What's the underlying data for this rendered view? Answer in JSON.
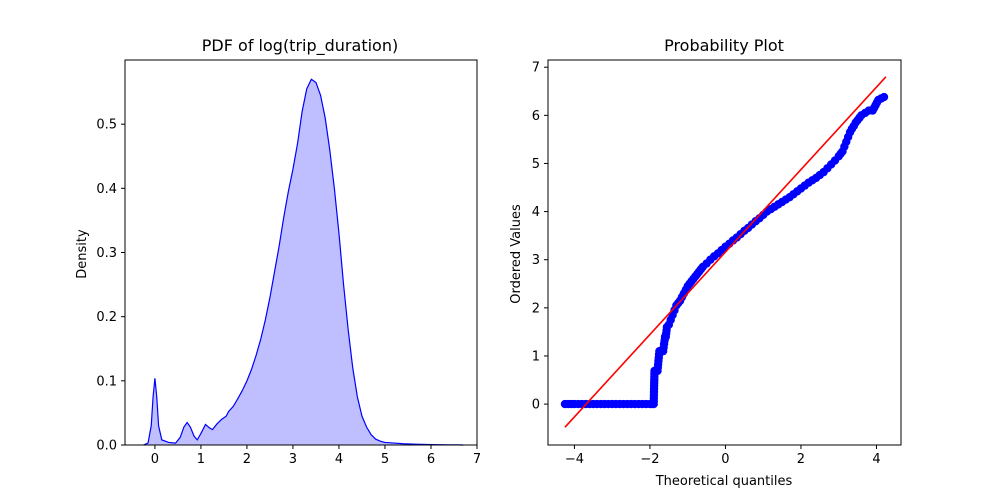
{
  "chart_data": [
    {
      "type": "area",
      "title": "PDF of log(trip_duration)",
      "xlabel": "",
      "ylabel": "Density",
      "xlim": [
        -0.65,
        7.0
      ],
      "ylim": [
        0,
        0.6
      ],
      "xticks": [
        0,
        1,
        2,
        3,
        4,
        5,
        6,
        7
      ],
      "yticks": [
        0.0,
        0.1,
        0.2,
        0.3,
        0.4,
        0.5
      ],
      "xtick_labels": [
        "0",
        "1",
        "2",
        "3",
        "4",
        "5",
        "6",
        "7"
      ],
      "ytick_labels": [
        "0.0",
        "0.1",
        "0.2",
        "0.3",
        "0.4",
        "0.5"
      ],
      "line_color": "#0000ff",
      "fill_color": "#bfbfff",
      "points": [
        [
          -0.25,
          0.0
        ],
        [
          -0.15,
          0.003
        ],
        [
          -0.08,
          0.03
        ],
        [
          -0.04,
          0.075
        ],
        [
          0.0,
          0.104
        ],
        [
          0.04,
          0.075
        ],
        [
          0.08,
          0.03
        ],
        [
          0.15,
          0.008
        ],
        [
          0.3,
          0.004
        ],
        [
          0.45,
          0.003
        ],
        [
          0.55,
          0.012
        ],
        [
          0.63,
          0.028
        ],
        [
          0.7,
          0.035
        ],
        [
          0.77,
          0.028
        ],
        [
          0.85,
          0.014
        ],
        [
          0.92,
          0.008
        ],
        [
          1.0,
          0.018
        ],
        [
          1.1,
          0.032
        ],
        [
          1.18,
          0.027
        ],
        [
          1.25,
          0.024
        ],
        [
          1.35,
          0.033
        ],
        [
          1.45,
          0.04
        ],
        [
          1.55,
          0.045
        ],
        [
          1.6,
          0.052
        ],
        [
          1.7,
          0.06
        ],
        [
          1.8,
          0.072
        ],
        [
          1.9,
          0.085
        ],
        [
          2.0,
          0.1
        ],
        [
          2.1,
          0.118
        ],
        [
          2.2,
          0.14
        ],
        [
          2.3,
          0.165
        ],
        [
          2.4,
          0.195
        ],
        [
          2.5,
          0.23
        ],
        [
          2.6,
          0.27
        ],
        [
          2.7,
          0.31
        ],
        [
          2.8,
          0.355
        ],
        [
          2.9,
          0.395
        ],
        [
          3.0,
          0.43
        ],
        [
          3.1,
          0.47
        ],
        [
          3.2,
          0.52
        ],
        [
          3.3,
          0.555
        ],
        [
          3.4,
          0.57
        ],
        [
          3.5,
          0.565
        ],
        [
          3.6,
          0.545
        ],
        [
          3.7,
          0.51
        ],
        [
          3.8,
          0.46
        ],
        [
          3.9,
          0.4
        ],
        [
          4.0,
          0.33
        ],
        [
          4.1,
          0.25
        ],
        [
          4.2,
          0.18
        ],
        [
          4.3,
          0.12
        ],
        [
          4.4,
          0.075
        ],
        [
          4.5,
          0.045
        ],
        [
          4.6,
          0.028
        ],
        [
          4.7,
          0.016
        ],
        [
          4.8,
          0.009
        ],
        [
          4.9,
          0.006
        ],
        [
          5.0,
          0.004
        ],
        [
          5.2,
          0.003
        ],
        [
          5.4,
          0.002
        ],
        [
          5.6,
          0.0015
        ],
        [
          5.8,
          0.001
        ],
        [
          6.0,
          0.0007
        ],
        [
          6.2,
          0.0005
        ],
        [
          6.4,
          0.0003
        ],
        [
          6.6,
          0.0002
        ],
        [
          6.7,
          0.0
        ]
      ]
    },
    {
      "type": "scatter",
      "title": "Probability Plot",
      "xlabel": "Theoretical quantiles",
      "ylabel": "Ordered Values",
      "xlim": [
        -4.7,
        4.65
      ],
      "ylim": [
        -0.85,
        7.15
      ],
      "xticks": [
        -4,
        -2,
        0,
        2,
        4
      ],
      "yticks": [
        0,
        1,
        2,
        3,
        4,
        5,
        6,
        7
      ],
      "xtick_labels": [
        "−4",
        "−2",
        "0",
        "2",
        "4"
      ],
      "ytick_labels": [
        "0",
        "1",
        "2",
        "3",
        "4",
        "5",
        "6",
        "7"
      ],
      "marker_color": "#0000ff",
      "line_color": "#ff0000",
      "fit_line": [
        [
          -4.25,
          -0.48
        ],
        [
          4.25,
          6.8
        ]
      ],
      "points": [
        [
          -4.25,
          0.0
        ],
        [
          -4.0,
          0.0
        ],
        [
          -3.9,
          0.0
        ],
        [
          -3.8,
          0.0
        ],
        [
          -3.7,
          0.0
        ],
        [
          -3.6,
          0.0
        ],
        [
          -3.5,
          0.0
        ],
        [
          -3.4,
          0.0
        ],
        [
          -3.3,
          0.0
        ],
        [
          -3.2,
          0.0
        ],
        [
          -3.1,
          0.0
        ],
        [
          -3.0,
          0.0
        ],
        [
          -2.9,
          0.0
        ],
        [
          -2.8,
          0.0
        ],
        [
          -2.7,
          0.0
        ],
        [
          -2.6,
          0.0
        ],
        [
          -2.5,
          0.0
        ],
        [
          -2.4,
          0.0
        ],
        [
          -2.3,
          0.0
        ],
        [
          -2.2,
          0.0
        ],
        [
          -2.1,
          0.0
        ],
        [
          -2.0,
          0.0
        ],
        [
          -1.95,
          0.0
        ],
        [
          -1.9,
          0.0
        ],
        [
          -1.88,
          0.69
        ],
        [
          -1.85,
          0.69
        ],
        [
          -1.82,
          0.69
        ],
        [
          -1.8,
          0.69
        ],
        [
          -1.75,
          1.1
        ],
        [
          -1.72,
          1.1
        ],
        [
          -1.7,
          1.1
        ],
        [
          -1.67,
          1.1
        ],
        [
          -1.65,
          1.1
        ],
        [
          -1.6,
          1.4
        ],
        [
          -1.58,
          1.4
        ],
        [
          -1.55,
          1.6
        ],
        [
          -1.5,
          1.65
        ],
        [
          -1.45,
          1.75
        ],
        [
          -1.4,
          1.85
        ],
        [
          -1.35,
          1.95
        ],
        [
          -1.3,
          2.05
        ],
        [
          -1.2,
          2.15
        ],
        [
          -1.1,
          2.3
        ],
        [
          -1.0,
          2.45
        ],
        [
          -0.9,
          2.55
        ],
        [
          -0.8,
          2.65
        ],
        [
          -0.7,
          2.75
        ],
        [
          -0.6,
          2.85
        ],
        [
          -0.5,
          2.92
        ],
        [
          -0.4,
          3.0
        ],
        [
          -0.3,
          3.07
        ],
        [
          -0.2,
          3.13
        ],
        [
          -0.1,
          3.2
        ],
        [
          0.0,
          3.27
        ],
        [
          0.1,
          3.33
        ],
        [
          0.2,
          3.4
        ],
        [
          0.3,
          3.46
        ],
        [
          0.4,
          3.53
        ],
        [
          0.5,
          3.6
        ],
        [
          0.6,
          3.66
        ],
        [
          0.7,
          3.73
        ],
        [
          0.8,
          3.8
        ],
        [
          0.9,
          3.86
        ],
        [
          1.0,
          3.93
        ],
        [
          1.1,
          4.0
        ],
        [
          1.2,
          4.05
        ],
        [
          1.3,
          4.1
        ],
        [
          1.4,
          4.15
        ],
        [
          1.5,
          4.2
        ],
        [
          1.6,
          4.25
        ],
        [
          1.7,
          4.3
        ],
        [
          1.8,
          4.36
        ],
        [
          1.9,
          4.42
        ],
        [
          2.0,
          4.48
        ],
        [
          2.1,
          4.54
        ],
        [
          2.2,
          4.6
        ],
        [
          2.3,
          4.65
        ],
        [
          2.4,
          4.7
        ],
        [
          2.5,
          4.76
        ],
        [
          2.6,
          4.82
        ],
        [
          2.7,
          4.9
        ],
        [
          2.8,
          4.98
        ],
        [
          2.9,
          5.06
        ],
        [
          3.0,
          5.15
        ],
        [
          3.1,
          5.25
        ],
        [
          3.15,
          5.35
        ],
        [
          3.2,
          5.45
        ],
        [
          3.25,
          5.55
        ],
        [
          3.3,
          5.65
        ],
        [
          3.35,
          5.72
        ],
        [
          3.4,
          5.78
        ],
        [
          3.45,
          5.85
        ],
        [
          3.5,
          5.9
        ],
        [
          3.55,
          5.95
        ],
        [
          3.6,
          6.0
        ],
        [
          3.7,
          6.05
        ],
        [
          3.8,
          6.1
        ],
        [
          3.9,
          6.1
        ],
        [
          4.05,
          6.32
        ],
        [
          4.2,
          6.38
        ]
      ]
    }
  ]
}
